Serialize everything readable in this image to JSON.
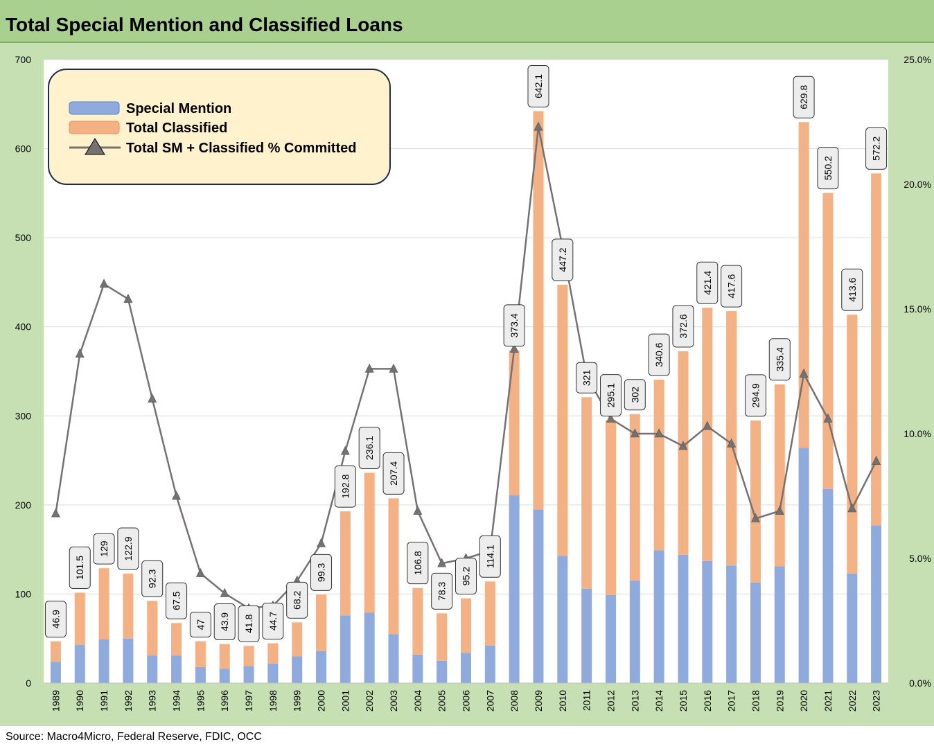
{
  "title": "Total Special Mention and Classified Loans",
  "source": "Source:  Macro4Micro, Federal Reserve, FDIC, OCC",
  "colors": {
    "special_mention": "#8faadc",
    "total_classified": "#f4b183",
    "line": "#767171",
    "title_bar": "#a9d08e",
    "frame": "#c6e0b4",
    "legend_bg": "#fff2cc"
  },
  "chart_data": {
    "type": "bar",
    "stacked": true,
    "categories": [
      "1989",
      "1990",
      "1991",
      "1992",
      "1993",
      "1994",
      "1995",
      "1996",
      "1997",
      "1998",
      "1999",
      "2000",
      "2001",
      "2002",
      "2003",
      "2004",
      "2005",
      "2006",
      "2007",
      "2008",
      "2009",
      "2010",
      "2011",
      "2012",
      "2013",
      "2014",
      "2015",
      "2016",
      "2017",
      "2018",
      "2019",
      "2020",
      "2021",
      "2022",
      "2023"
    ],
    "series": [
      {
        "name": "Special Mention",
        "type": "bar",
        "axis": "left",
        "values": [
          24,
          43,
          49,
          50,
          31,
          31,
          18,
          16,
          19,
          22,
          30,
          36,
          76,
          79,
          55,
          32,
          25,
          34,
          42,
          211,
          195,
          143,
          106,
          99,
          115,
          149,
          144,
          137,
          132,
          113,
          131,
          264,
          218,
          123,
          177
        ]
      },
      {
        "name": "Total Classified",
        "type": "bar",
        "axis": "left",
        "values": [
          22.9,
          58.5,
          80,
          72.9,
          61.3,
          36.5,
          29,
          27.9,
          22.8,
          22.7,
          38.2,
          63.3,
          116.8,
          157.1,
          152.4,
          74.8,
          53.3,
          61.2,
          72.1,
          162.4,
          447.1,
          304.2,
          215,
          196.1,
          187,
          191.6,
          228.6,
          284.4,
          285.6,
          181.9,
          204.4,
          365.8,
          332.2,
          290.6,
          395.2
        ]
      },
      {
        "name": "Total SM + Classified % Committed",
        "type": "line",
        "axis": "right",
        "marker": "triangle",
        "values": [
          6.8,
          13.2,
          16.0,
          15.4,
          11.4,
          7.5,
          4.4,
          3.6,
          3.0,
          3.1,
          4.1,
          5.6,
          9.3,
          12.6,
          12.6,
          6.9,
          4.8,
          5.0,
          5.3,
          13.4,
          22.3,
          17.5,
          12.3,
          10.6,
          10.0,
          10.0,
          9.5,
          10.3,
          9.6,
          6.6,
          6.9,
          12.4,
          10.6,
          7.0,
          8.9
        ]
      }
    ],
    "totals": [
      "46.9",
      "101.5",
      "129",
      "122.9",
      "92.3",
      "67.5",
      "47",
      "43.9",
      "41.8",
      "44.7",
      "68.2",
      "99.3",
      "192.8",
      "236.1",
      "207.4",
      "106.8",
      "78.3",
      "95.2",
      "114.1",
      "373.4",
      "642.1",
      "447.2",
      "321",
      "295.1",
      "302",
      "340.6",
      "372.6",
      "421.4",
      "417.6",
      "294.9",
      "335.4",
      "629.8",
      "550.2",
      "413.6",
      "572.2"
    ],
    "left_axis": {
      "min": 0,
      "max": 700,
      "ticks": [
        "0",
        "100",
        "200",
        "300",
        "400",
        "500",
        "600",
        "700"
      ]
    },
    "right_axis": {
      "min": 0,
      "max": 25,
      "ticks": [
        "0.0%",
        "5.0%",
        "10.0%",
        "15.0%",
        "20.0%",
        "25.0%"
      ]
    },
    "grid": true,
    "legend_position": "top-left"
  }
}
